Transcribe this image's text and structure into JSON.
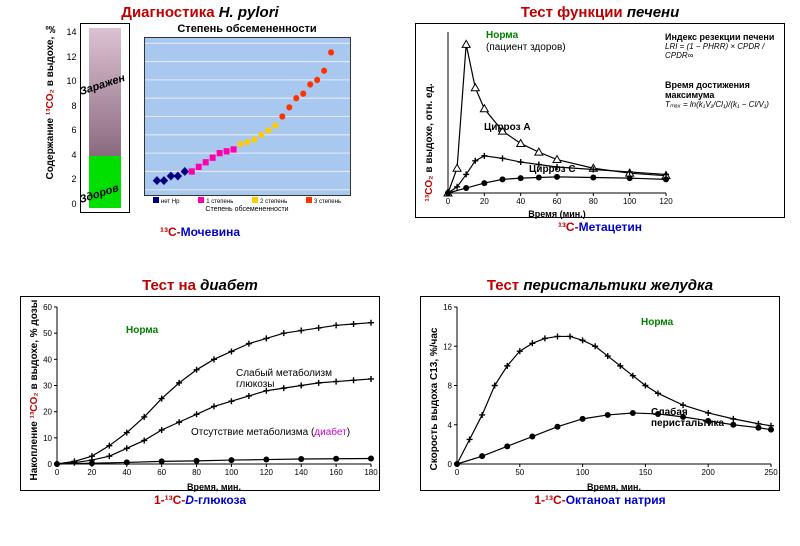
{
  "panelA": {
    "title_red": "Диагностика ",
    "title_ital": "H. pylori",
    "yaxis_pre": "Содержание ",
    "yaxis_co2": "¹³CO₂",
    "yaxis_post": " в выдохе, ‰",
    "bar": {
      "ymax": 14,
      "ytick_step": 2,
      "infected_label": "Заражен",
      "healthy_label": "Здоров",
      "threshold": 4,
      "green": "#00e000"
    },
    "scatter": {
      "title": "Степень обсемененности",
      "xlabel": "Степень обсемененности",
      "legend": [
        "нет Hp",
        "1 степень",
        "2 степень",
        "3 степень"
      ],
      "legend_colors": [
        "#000080",
        "#ff00aa",
        "#ffcc00",
        "#ff3300"
      ],
      "ylim": [
        -2,
        14
      ],
      "points": [
        {
          "x": 0.5,
          "y": -1,
          "c": "#000080",
          "m": "diamond"
        },
        {
          "x": 1,
          "y": -1,
          "c": "#000080",
          "m": "diamond"
        },
        {
          "x": 1.5,
          "y": -0.5,
          "c": "#000080",
          "m": "diamond"
        },
        {
          "x": 2,
          "y": -0.5,
          "c": "#000080",
          "m": "diamond"
        },
        {
          "x": 2.5,
          "y": 0,
          "c": "#000080",
          "m": "diamond"
        },
        {
          "x": 3,
          "y": 0,
          "c": "#ff00aa",
          "m": "square"
        },
        {
          "x": 3.5,
          "y": 0.5,
          "c": "#ff00aa",
          "m": "square"
        },
        {
          "x": 4,
          "y": 1,
          "c": "#ff00aa",
          "m": "square"
        },
        {
          "x": 4.5,
          "y": 1.5,
          "c": "#ff00aa",
          "m": "square"
        },
        {
          "x": 5,
          "y": 2,
          "c": "#ff00aa",
          "m": "square"
        },
        {
          "x": 5.5,
          "y": 2.2,
          "c": "#ff00aa",
          "m": "square"
        },
        {
          "x": 6,
          "y": 2.4,
          "c": "#ff00aa",
          "m": "square"
        },
        {
          "x": 6.5,
          "y": 3,
          "c": "#ffcc00",
          "m": "circle"
        },
        {
          "x": 7,
          "y": 3.2,
          "c": "#ffcc00",
          "m": "circle"
        },
        {
          "x": 7.5,
          "y": 3.5,
          "c": "#ffcc00",
          "m": "circle"
        },
        {
          "x": 8,
          "y": 4,
          "c": "#ffcc00",
          "m": "circle"
        },
        {
          "x": 8.5,
          "y": 4.5,
          "c": "#ffcc00",
          "m": "circle"
        },
        {
          "x": 9,
          "y": 5,
          "c": "#ffcc00",
          "m": "circle"
        },
        {
          "x": 9.5,
          "y": 6,
          "c": "#ff3300",
          "m": "circle"
        },
        {
          "x": 10,
          "y": 7,
          "c": "#ff3300",
          "m": "circle"
        },
        {
          "x": 10.5,
          "y": 8,
          "c": "#ff3300",
          "m": "circle"
        },
        {
          "x": 11,
          "y": 8.5,
          "c": "#ff3300",
          "m": "circle"
        },
        {
          "x": 11.5,
          "y": 9.5,
          "c": "#ff3300",
          "m": "circle"
        },
        {
          "x": 12,
          "y": 10,
          "c": "#ff3300",
          "m": "circle"
        },
        {
          "x": 12.5,
          "y": 11,
          "c": "#ff3300",
          "m": "circle"
        },
        {
          "x": 13,
          "y": 13,
          "c": "#ff3300",
          "m": "circle"
        }
      ]
    },
    "sub_pre": "¹³C-",
    "sub_txt": "Мочевина"
  },
  "panelB": {
    "title_red": "Тест функции ",
    "title_ital": "печени",
    "yaxis_pre": "",
    "yaxis_co2": "¹³CO₂",
    "yaxis_post": " в выдохе, отн. ед.",
    "xlim": [
      0,
      120
    ],
    "xtick_step": 20,
    "xlabel": "Время (мин.)",
    "series": {
      "norm": {
        "label": "Норма",
        "sub": "(пациент здоров)",
        "marker": "tri",
        "pts": [
          [
            0,
            0
          ],
          [
            5,
            2
          ],
          [
            10,
            12
          ],
          [
            15,
            8.5
          ],
          [
            20,
            6.8
          ],
          [
            30,
            5
          ],
          [
            40,
            4
          ],
          [
            50,
            3.3
          ],
          [
            60,
            2.7
          ],
          [
            80,
            2
          ],
          [
            100,
            1.6
          ],
          [
            120,
            1.4
          ]
        ]
      },
      "cirrA": {
        "label": "Цирроз A",
        "marker": "plus",
        "pts": [
          [
            0,
            0
          ],
          [
            5,
            0.5
          ],
          [
            10,
            1.5
          ],
          [
            15,
            2.6
          ],
          [
            20,
            3
          ],
          [
            30,
            2.8
          ],
          [
            40,
            2.5
          ],
          [
            50,
            2.3
          ],
          [
            60,
            2.1
          ],
          [
            80,
            1.9
          ],
          [
            100,
            1.7
          ],
          [
            120,
            1.5
          ]
        ]
      },
      "cirrC": {
        "label": "Цирроз C",
        "marker": "dot",
        "pts": [
          [
            0,
            0
          ],
          [
            10,
            0.4
          ],
          [
            20,
            0.8
          ],
          [
            30,
            1.1
          ],
          [
            40,
            1.2
          ],
          [
            50,
            1.25
          ],
          [
            60,
            1.3
          ],
          [
            80,
            1.25
          ],
          [
            100,
            1.2
          ],
          [
            120,
            1.1
          ]
        ]
      }
    },
    "ylim": [
      0,
      13
    ],
    "labels_right": {
      "lri": "Индекс резекции печени",
      "tmax": "Время достижения максимума",
      "eq1": "LRI = (1 − PHRR) × CPDR / CPDR∞",
      "eq2": "Tₘₐₓ = ln(k₁V₁/Cl₁)/(k₁ − Cl/V₁)"
    },
    "sub_pre": "¹³C-",
    "sub_txt": "Метацетин"
  },
  "panelC": {
    "title_red": "Тест на ",
    "title_ital": "диабет",
    "yaxis_pre": "Накопление ",
    "yaxis_co2": "¹³CO₂",
    "yaxis_post": " в выдохе, % дозы",
    "xlabel": "Время, мин.",
    "xlim": [
      0,
      180
    ],
    "xtick_step": 20,
    "ylim": [
      0,
      60
    ],
    "ytick_step": 10,
    "series": {
      "norm": {
        "marker": "plus",
        "pts": [
          [
            0,
            0
          ],
          [
            10,
            1
          ],
          [
            20,
            3
          ],
          [
            30,
            7
          ],
          [
            40,
            12
          ],
          [
            50,
            18
          ],
          [
            60,
            25
          ],
          [
            70,
            31
          ],
          [
            80,
            36
          ],
          [
            90,
            40
          ],
          [
            100,
            43
          ],
          [
            110,
            46
          ],
          [
            120,
            48
          ],
          [
            130,
            50
          ],
          [
            140,
            51
          ],
          [
            150,
            52
          ],
          [
            160,
            53
          ],
          [
            170,
            53.5
          ],
          [
            180,
            54
          ]
        ]
      },
      "weak": {
        "marker": "plus",
        "pts": [
          [
            0,
            0
          ],
          [
            10,
            0.5
          ],
          [
            20,
            1.5
          ],
          [
            30,
            3
          ],
          [
            40,
            6
          ],
          [
            50,
            9
          ],
          [
            60,
            13
          ],
          [
            70,
            16
          ],
          [
            80,
            19
          ],
          [
            90,
            22
          ],
          [
            100,
            24
          ],
          [
            110,
            26
          ],
          [
            120,
            28
          ],
          [
            130,
            29
          ],
          [
            140,
            30
          ],
          [
            150,
            31
          ],
          [
            160,
            31.5
          ],
          [
            170,
            32
          ],
          [
            180,
            32.5
          ]
        ]
      },
      "none": {
        "marker": "dot",
        "pts": [
          [
            0,
            0
          ],
          [
            20,
            0.3
          ],
          [
            40,
            0.6
          ],
          [
            60,
            1
          ],
          [
            80,
            1.2
          ],
          [
            100,
            1.5
          ],
          [
            120,
            1.7
          ],
          [
            140,
            1.9
          ],
          [
            160,
            2
          ],
          [
            180,
            2.1
          ]
        ]
      }
    },
    "annot": {
      "norm": "Норма",
      "weak": "Слабый метаболизм глюкозы",
      "none_pre": "Отсутствие метаболизма (",
      "none_mag": "диабет",
      "none_post": ")"
    },
    "sub_html": "1-¹³C-<i>D</i>-глюкоза"
  },
  "panelD": {
    "title_red": "Тест ",
    "title_ital": "перистальтики желудка",
    "yaxis": "Скорость выдоха С13, %/час",
    "xlabel": "Время, мин.",
    "xlim": [
      0,
      250
    ],
    "xtick_step": 50,
    "ylim": [
      0,
      16
    ],
    "ytick_step": 4,
    "series": {
      "norm": {
        "marker": "plus",
        "pts": [
          [
            0,
            0
          ],
          [
            10,
            2.5
          ],
          [
            20,
            5
          ],
          [
            30,
            8
          ],
          [
            40,
            10
          ],
          [
            50,
            11.5
          ],
          [
            60,
            12.3
          ],
          [
            70,
            12.8
          ],
          [
            80,
            13
          ],
          [
            90,
            13
          ],
          [
            100,
            12.6
          ],
          [
            110,
            12
          ],
          [
            120,
            11
          ],
          [
            130,
            10
          ],
          [
            140,
            9
          ],
          [
            150,
            8
          ],
          [
            160,
            7.2
          ],
          [
            180,
            6
          ],
          [
            200,
            5.2
          ],
          [
            220,
            4.6
          ],
          [
            240,
            4.1
          ],
          [
            250,
            3.9
          ]
        ]
      },
      "slow": {
        "marker": "dot",
        "pts": [
          [
            0,
            0
          ],
          [
            20,
            0.8
          ],
          [
            40,
            1.8
          ],
          [
            60,
            2.8
          ],
          [
            80,
            3.8
          ],
          [
            100,
            4.6
          ],
          [
            120,
            5
          ],
          [
            140,
            5.2
          ],
          [
            160,
            5.1
          ],
          [
            180,
            4.8
          ],
          [
            200,
            4.4
          ],
          [
            220,
            4
          ],
          [
            240,
            3.7
          ],
          [
            250,
            3.5
          ]
        ]
      }
    },
    "annot": {
      "norm": "Норма",
      "slow": "Слабая перистальтика"
    },
    "sub_html": "1-¹³C-Октаноат натрия"
  }
}
